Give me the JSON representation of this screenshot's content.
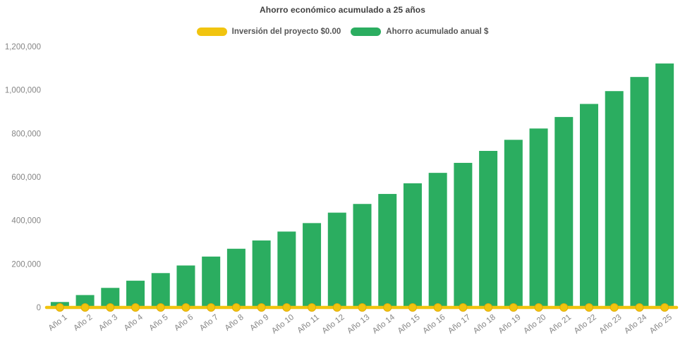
{
  "chart_data": {
    "type": "bar",
    "title": "Ahorro económico acumulado a 25 años",
    "categories": [
      "Año 1",
      "Año 2",
      "Año 3",
      "Año 4",
      "Año 5",
      "Año 6",
      "Año 7",
      "Año 8",
      "Año 9",
      "Año 10",
      "Año 11",
      "Año 12",
      "Año 13",
      "Año 14",
      "Año 15",
      "Año 16",
      "Año 17",
      "Año 18",
      "Año 19",
      "Año 20",
      "Año 21",
      "Año 22",
      "Año 23",
      "Año 24",
      "Año 25"
    ],
    "series": [
      {
        "name": "Inversión del proyecto $0.00",
        "type": "line",
        "color": "#F1C40F",
        "marker_stroke": "#E2AC05",
        "values": [
          0,
          0,
          0,
          0,
          0,
          0,
          0,
          0,
          0,
          0,
          0,
          0,
          0,
          0,
          0,
          0,
          0,
          0,
          0,
          0,
          0,
          0,
          0,
          0,
          0
        ]
      },
      {
        "name": "Ahorro acumulado anual $",
        "type": "bar",
        "color": "#2BAD60",
        "values": [
          25000,
          57000,
          90000,
          123000,
          158000,
          193000,
          234000,
          270000,
          308000,
          349000,
          388000,
          436000,
          476000,
          522000,
          571000,
          619000,
          665000,
          720000,
          771000,
          823000,
          876000,
          936000,
          995000,
          1060000,
          1122000
        ]
      }
    ],
    "ylim": [
      0,
      1200000
    ],
    "ytick_step": 200000,
    "ytick_labels": [
      "0",
      "200,000",
      "400,000",
      "600,000",
      "800,000",
      "1,000,000",
      "1,200,000"
    ],
    "grid": false,
    "legend_position": "top",
    "xlabel": "",
    "ylabel": "",
    "axis_text_color": "#858585",
    "title_color": "#3f3f3f",
    "x_label_rotation": -38
  }
}
